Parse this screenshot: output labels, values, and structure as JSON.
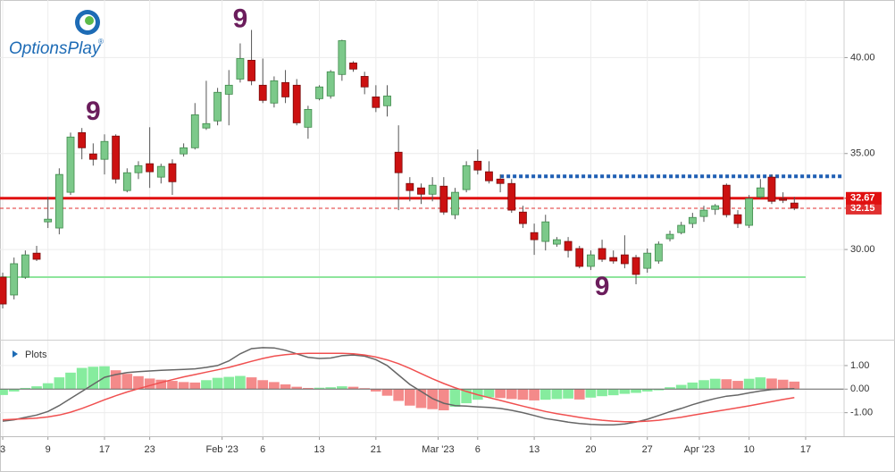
{
  "brand": {
    "name": "OptionsPlay",
    "mark": "®"
  },
  "chart_data": [
    {
      "type": "candlestick",
      "xlim": [
        -0.24,
        74.4
      ],
      "xticks": [
        {
          "value": 0,
          "label": "3"
        },
        {
          "value": 4,
          "label": "9"
        },
        {
          "value": 9,
          "label": "17"
        },
        {
          "value": 13,
          "label": "23"
        },
        {
          "value": 19.4,
          "label": "Feb '23"
        },
        {
          "value": 23,
          "label": "6"
        },
        {
          "value": 28,
          "label": "13"
        },
        {
          "value": 33,
          "label": "21"
        },
        {
          "value": 38.5,
          "label": "Mar '23"
        },
        {
          "value": 42,
          "label": "6"
        },
        {
          "value": 47,
          "label": "13"
        },
        {
          "value": 52,
          "label": "20"
        },
        {
          "value": 57,
          "label": "27"
        },
        {
          "value": 61.6,
          "label": "Apr '23"
        },
        {
          "value": 66,
          "label": "10"
        },
        {
          "value": 71,
          "label": "17"
        }
      ],
      "ylim": [
        25.3,
        43.0
      ],
      "yticks": [
        {
          "value": 30,
          "label": "30.00"
        },
        {
          "value": 35,
          "label": "35.00"
        },
        {
          "value": 40,
          "label": "40.00"
        }
      ],
      "grid": true,
      "up_color": "#7cc98a",
      "down_color": "#cc1111",
      "open": [
        28.56,
        27.63,
        28.56,
        29.81,
        31.44,
        31.12,
        32.98,
        36.09,
        34.98,
        34.7,
        35.91,
        33.07,
        34.0,
        34.47,
        33.77,
        34.47,
        34.98,
        35.3,
        36.33,
        36.7,
        38.09,
        38.88,
        39.86,
        38.56,
        37.63,
        38.7,
        38.56,
        36.37,
        37.86,
        38.0,
        39.12,
        39.72,
        39.02,
        37.95,
        37.49,
        35.07,
        33.44,
        33.21,
        32.88,
        33.3,
        31.81,
        33.12,
        34.6,
        34.05,
        33.67,
        33.44,
        31.95,
        30.88,
        30.42,
        30.28,
        30.42,
        30.05,
        29.12,
        30.05,
        29.58,
        29.72,
        29.58,
        29.02,
        29.4,
        30.56,
        30.88,
        31.35,
        31.72,
        32.09,
        33.35,
        31.81,
        31.26,
        32.74,
        33.77,
        32.65,
        32.42
      ],
      "high": [
        28.79,
        29.58,
        29.95,
        30.19,
        32.74,
        34.23,
        36.09,
        36.33,
        35.53,
        36.0,
        36.0,
        34.23,
        34.6,
        36.37,
        34.47,
        34.7,
        35.53,
        37.63,
        38.79,
        38.42,
        39.35,
        40.74,
        41.44,
        39.95,
        39.02,
        39.35,
        38.88,
        37.49,
        38.56,
        39.35,
        40.93,
        39.81,
        39.26,
        38.56,
        38.56,
        36.47,
        33.77,
        33.44,
        33.77,
        33.77,
        33.21,
        34.6,
        35.21,
        34.6,
        33.91,
        33.67,
        32.28,
        31.35,
        31.81,
        30.65,
        30.65,
        30.19,
        29.95,
        30.51,
        29.95,
        30.74,
        29.72,
        30.05,
        30.42,
        30.98,
        31.44,
        31.91,
        32.28,
        32.37,
        33.44,
        32.05,
        32.84,
        33.67,
        33.91,
        32.98,
        32.74
      ],
      "low": [
        26.93,
        27.4,
        28.47,
        29.4,
        31.12,
        30.79,
        32.84,
        34.7,
        34.37,
        33.91,
        33.44,
        32.98,
        33.67,
        33.21,
        33.44,
        32.84,
        34.84,
        35.21,
        36.23,
        36.47,
        36.47,
        38.7,
        38.56,
        37.63,
        37.4,
        37.63,
        36.47,
        35.77,
        37.77,
        37.86,
        38.79,
        39.26,
        38.09,
        37.16,
        36.93,
        32.05,
        32.51,
        32.37,
        32.51,
        31.81,
        31.58,
        32.98,
        33.91,
        33.44,
        32.98,
        31.91,
        31.12,
        29.72,
        29.95,
        30.14,
        29.58,
        29.02,
        28.93,
        29.35,
        29.26,
        29.02,
        28.19,
        28.79,
        29.26,
        30.42,
        30.79,
        31.12,
        31.44,
        31.81,
        31.67,
        31.12,
        31.12,
        32.65,
        32.37,
        32.42,
        32.05
      ],
      "close": [
        27.16,
        29.26,
        29.72,
        29.49,
        31.58,
        33.91,
        35.86,
        35.3,
        34.7,
        35.63,
        33.67,
        34.0,
        34.37,
        34.05,
        34.33,
        33.53,
        35.3,
        37.02,
        36.56,
        38.19,
        38.56,
        39.95,
        38.79,
        37.77,
        38.79,
        37.95,
        36.6,
        37.3,
        38.47,
        39.26,
        40.88,
        39.4,
        38.47,
        37.4,
        38.0,
        34.0,
        33.07,
        32.88,
        33.35,
        31.95,
        32.98,
        34.37,
        34.14,
        33.58,
        33.44,
        32.05,
        31.35,
        30.51,
        31.44,
        30.51,
        29.95,
        29.12,
        29.72,
        29.49,
        29.4,
        29.26,
        28.7,
        29.81,
        30.28,
        30.79,
        31.26,
        31.67,
        32.05,
        32.28,
        31.81,
        31.35,
        32.65,
        33.21,
        32.51,
        32.56,
        32.15
      ],
      "levels": [
        {
          "value": 28.56,
          "color": "#8ee59c",
          "style": "solid",
          "to": 71
        },
        {
          "value": 33.81,
          "color": "#1f5fb4",
          "style": "dotted",
          "from": 44
        },
        {
          "value": 32.15,
          "color": "#e03030",
          "style": "dashed",
          "label": "32.15"
        },
        {
          "value": 32.67,
          "color": "#e01010",
          "style": "solid",
          "label": "32.67"
        }
      ],
      "annotations": [
        {
          "text": "9",
          "x": 8,
          "y": 37.12
        },
        {
          "text": "9",
          "x": 21,
          "y": 41.95
        },
        {
          "text": "9",
          "x": 53,
          "y": 28.0
        }
      ]
    },
    {
      "type": "macd",
      "title": "Plots",
      "ylim": [
        -2.0,
        2.06
      ],
      "yticks": [
        {
          "value": -1,
          "label": "-1.00"
        },
        {
          "value": 0,
          "label": "0.00"
        },
        {
          "value": 1,
          "label": "1.00"
        }
      ],
      "histogram": {
        "up_color": "#86ec9e",
        "down_color": "#f48a8a",
        "values": [
          -0.25,
          -0.1,
          0.05,
          0.12,
          0.25,
          0.5,
          0.7,
          0.9,
          0.95,
          0.97,
          0.8,
          0.65,
          0.55,
          0.45,
          0.4,
          0.35,
          0.3,
          0.28,
          0.38,
          0.48,
          0.52,
          0.56,
          0.5,
          0.38,
          0.3,
          0.2,
          0.1,
          0.05,
          0.06,
          0.08,
          0.12,
          0.1,
          0.04,
          -0.1,
          -0.28,
          -0.5,
          -0.7,
          -0.8,
          -0.85,
          -0.9,
          -0.75,
          -0.6,
          -0.45,
          -0.35,
          -0.38,
          -0.42,
          -0.45,
          -0.48,
          -0.45,
          -0.42,
          -0.4,
          -0.44,
          -0.36,
          -0.3,
          -0.26,
          -0.2,
          -0.16,
          -0.1,
          -0.05,
          0.08,
          0.18,
          0.28,
          0.38,
          0.44,
          0.42,
          0.35,
          0.44,
          0.5,
          0.45,
          0.4,
          0.32
        ]
      },
      "series": [
        {
          "color": "#666666",
          "values": [
            -1.36,
            -1.3,
            -1.2,
            -1.1,
            -0.95,
            -0.7,
            -0.4,
            -0.1,
            0.2,
            0.5,
            0.62,
            0.7,
            0.74,
            0.77,
            0.8,
            0.82,
            0.84,
            0.86,
            0.92,
            1.0,
            1.2,
            1.5,
            1.72,
            1.76,
            1.75,
            1.65,
            1.5,
            1.35,
            1.3,
            1.32,
            1.42,
            1.45,
            1.4,
            1.25,
            1.0,
            0.6,
            0.2,
            -0.1,
            -0.4,
            -0.6,
            -0.7,
            -0.72,
            -0.75,
            -0.78,
            -0.82,
            -0.9,
            -1.0,
            -1.12,
            -1.25,
            -1.32,
            -1.4,
            -1.46,
            -1.5,
            -1.52,
            -1.52,
            -1.48,
            -1.4,
            -1.28,
            -1.12,
            -0.96,
            -0.82,
            -0.66,
            -0.52,
            -0.4,
            -0.3,
            -0.25,
            -0.16,
            -0.08,
            -0.02,
            0.0,
            0.02
          ]
        },
        {
          "color": "#f05050",
          "values": [
            -1.3,
            -1.28,
            -1.26,
            -1.23,
            -1.18,
            -1.1,
            -0.98,
            -0.82,
            -0.64,
            -0.45,
            -0.28,
            -0.12,
            0.02,
            0.15,
            0.28,
            0.4,
            0.52,
            0.62,
            0.72,
            0.82,
            0.92,
            1.05,
            1.18,
            1.3,
            1.4,
            1.46,
            1.5,
            1.52,
            1.52,
            1.52,
            1.52,
            1.5,
            1.45,
            1.36,
            1.24,
            1.08,
            0.88,
            0.66,
            0.44,
            0.24,
            0.06,
            -0.1,
            -0.24,
            -0.36,
            -0.48,
            -0.6,
            -0.72,
            -0.84,
            -0.95,
            -1.04,
            -1.12,
            -1.2,
            -1.27,
            -1.32,
            -1.36,
            -1.38,
            -1.38,
            -1.36,
            -1.32,
            -1.26,
            -1.19,
            -1.11,
            -1.03,
            -0.95,
            -0.87,
            -0.79,
            -0.71,
            -0.62,
            -0.53,
            -0.44,
            -0.36
          ]
        }
      ]
    }
  ]
}
